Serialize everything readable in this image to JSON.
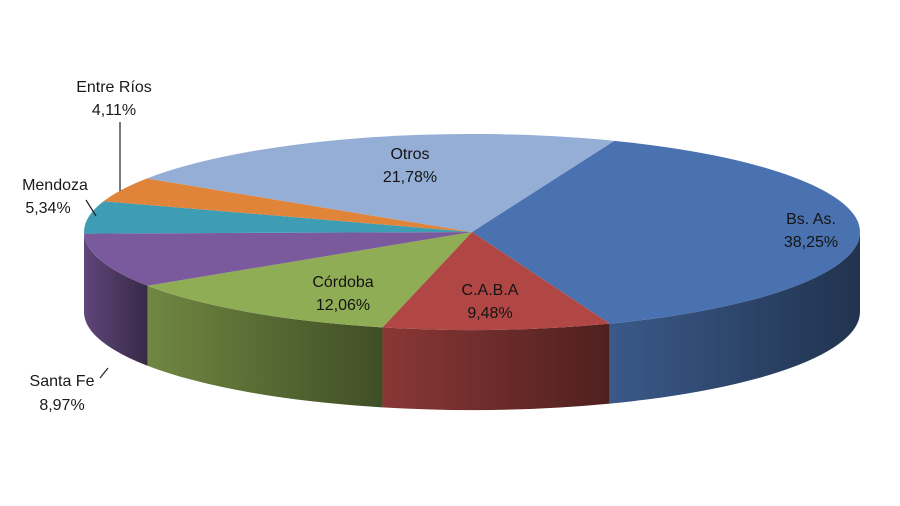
{
  "chart_data": {
    "type": "pie",
    "style": "3d-exploded-none",
    "title": "",
    "slices": [
      {
        "name": "Bs. As.",
        "label": "38,25%",
        "value": 38.25,
        "color": "#4a72b0"
      },
      {
        "name": "C.A.B.A",
        "label": "9,48%",
        "value": 9.48,
        "color": "#b04745"
      },
      {
        "name": "Córdoba",
        "label": "12,06%",
        "value": 12.06,
        "color": "#8fad55"
      },
      {
        "name": "Santa Fe",
        "label": "8,97%",
        "value": 8.97,
        "color": "#7a5a9c"
      },
      {
        "name": "Mendoza",
        "label": "5,34%",
        "value": 5.34,
        "color": "#3f9db3"
      },
      {
        "name": "Entre Ríos",
        "label": "4,11%",
        "value": 4.11,
        "color": "#e0843a"
      },
      {
        "name": "Otros",
        "label": "21,78%",
        "value": 21.78,
        "color": "#95aed6"
      }
    ]
  }
}
